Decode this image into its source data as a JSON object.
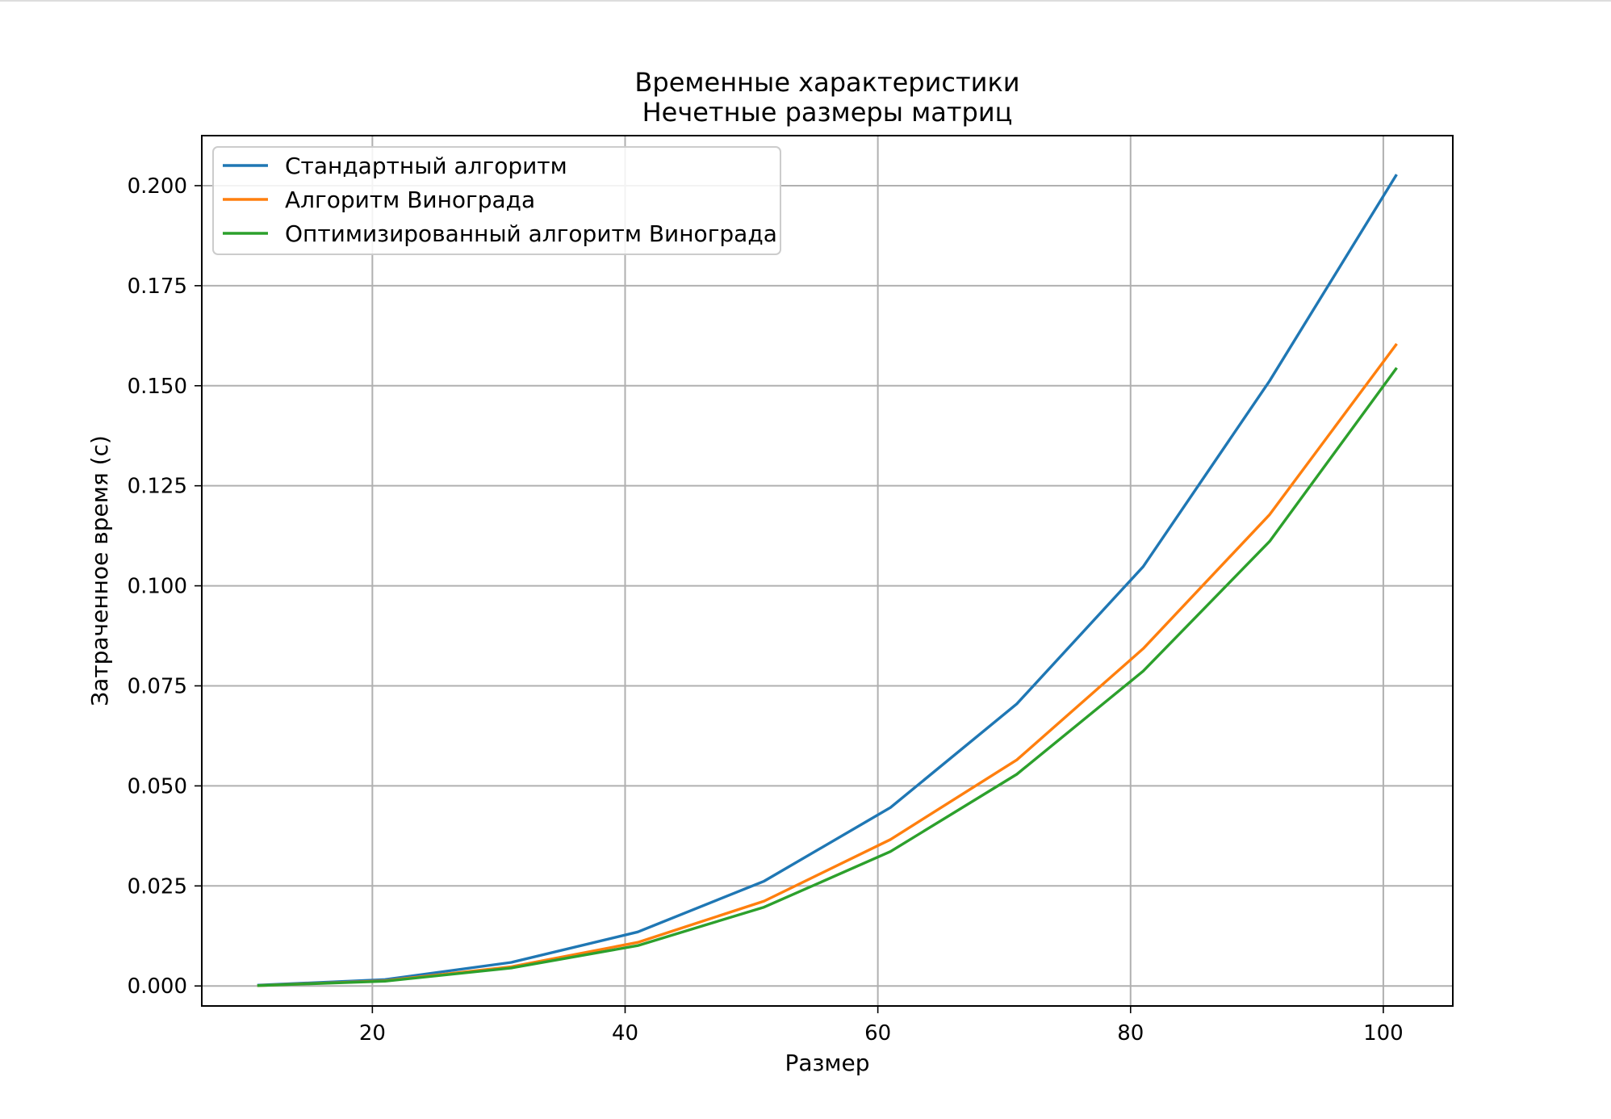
{
  "chart_data": {
    "type": "line",
    "title": [
      "Временные характеристики",
      "Нечетные размеры матриц"
    ],
    "xlabel": "Размер",
    "ylabel": "Затраченное время (с)",
    "x": [
      11,
      21,
      31,
      41,
      51,
      61,
      71,
      81,
      91,
      101
    ],
    "xlim": [
      6.5,
      105.5
    ],
    "ylim": [
      -0.005,
      0.2125
    ],
    "xticks": [
      20,
      40,
      60,
      80,
      100
    ],
    "xtick_labels": [
      "20",
      "40",
      "60",
      "80",
      "100"
    ],
    "yticks": [
      0.0,
      0.025,
      0.05,
      0.075,
      0.1,
      0.125,
      0.15,
      0.175,
      0.2
    ],
    "ytick_labels": [
      "0.000",
      "0.025",
      "0.050",
      "0.075",
      "0.100",
      "0.125",
      "0.150",
      "0.175",
      "0.200"
    ],
    "grid": true,
    "legend_position": "top-left",
    "series": [
      {
        "name": "Стандартный алгоритм",
        "color": "#1f77b4",
        "values": [
          0.0002,
          0.0016,
          0.0059,
          0.0135,
          0.0262,
          0.0446,
          0.0705,
          0.1048,
          0.1512,
          0.2025
        ]
      },
      {
        "name": "Алгоритм Винограда",
        "color": "#ff7f0e",
        "values": [
          0.0001,
          0.0013,
          0.0048,
          0.0109,
          0.0212,
          0.0366,
          0.0565,
          0.0843,
          0.1178,
          0.1602
        ]
      },
      {
        "name": "Оптимизированный алгоритм Винограда",
        "color": "#2ca02c",
        "values": [
          0.0001,
          0.0012,
          0.0045,
          0.0101,
          0.0197,
          0.0336,
          0.0529,
          0.0787,
          0.1111,
          0.1542
        ]
      }
    ]
  }
}
